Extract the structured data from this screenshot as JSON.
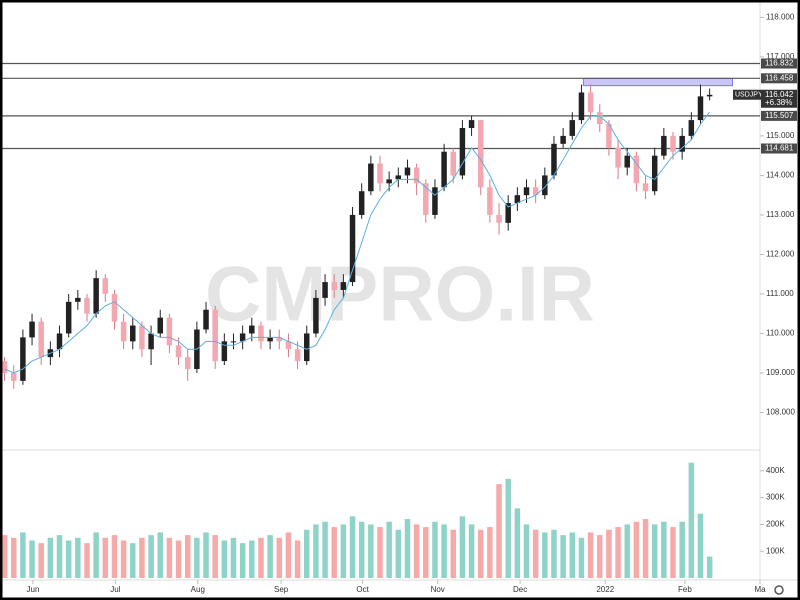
{
  "chart_data": [
    {
      "type": "candlestick",
      "symbol": "USDJPY",
      "watermark": "CMPRO.IR",
      "up_color": "#222222",
      "down_color": "#f3a7b0",
      "ma_color": "#5aaee0",
      "open": [
        109.3,
        109.0,
        108.8,
        109.9,
        110.3,
        109.4,
        109.6,
        110.0,
        110.8,
        110.9,
        110.5,
        111.4,
        111.0,
        110.3,
        109.8,
        110.2,
        109.6,
        110.0,
        110.4,
        109.7,
        109.4,
        109.1,
        110.1,
        110.6,
        109.3,
        109.8,
        109.8,
        110.0,
        110.2,
        109.8,
        109.9,
        109.8,
        109.6,
        109.3,
        110.0,
        110.9,
        111.3,
        111.1,
        111.3,
        113.0,
        113.6,
        114.3,
        113.8,
        113.9,
        114.0,
        114.2,
        113.8,
        113.0,
        113.7,
        114.6,
        114.0,
        115.2,
        115.4,
        113.7,
        113.0,
        112.8,
        113.3,
        113.5,
        113.7,
        113.5,
        114.0,
        114.8,
        115.0,
        115.4,
        116.1,
        115.6,
        115.3,
        114.7,
        114.2,
        114.5,
        113.8,
        113.6,
        114.5,
        115.0,
        114.6,
        115.0,
        115.4,
        116.0
      ],
      "high": [
        109.4,
        109.2,
        110.1,
        110.5,
        110.4,
        109.8,
        110.2,
        111.0,
        111.1,
        111.0,
        111.6,
        111.5,
        111.1,
        110.5,
        110.4,
        110.3,
        110.2,
        110.6,
        110.5,
        109.9,
        109.6,
        110.3,
        110.8,
        110.7,
        110.0,
        110.0,
        110.2,
        110.4,
        110.3,
        110.1,
        110.1,
        110.0,
        109.8,
        110.2,
        111.1,
        111.5,
        111.5,
        111.5,
        113.2,
        113.8,
        114.5,
        114.5,
        114.1,
        114.2,
        114.4,
        114.3,
        113.9,
        113.9,
        114.8,
        114.7,
        115.4,
        115.5,
        115.4,
        113.9,
        113.3,
        113.5,
        113.7,
        113.9,
        113.9,
        114.2,
        115.0,
        115.2,
        115.6,
        116.3,
        116.3,
        115.8,
        115.4,
        114.9,
        114.7,
        114.6,
        114.0,
        114.7,
        115.2,
        115.1,
        115.2,
        115.6,
        116.3,
        116.2
      ],
      "low": [
        108.8,
        108.6,
        108.7,
        109.7,
        109.2,
        109.2,
        109.4,
        109.9,
        110.6,
        110.3,
        110.4,
        110.8,
        110.1,
        109.6,
        109.6,
        109.4,
        109.2,
        109.9,
        109.5,
        109.2,
        108.8,
        109.0,
        110.0,
        109.1,
        109.2,
        109.6,
        109.6,
        109.8,
        109.6,
        109.6,
        109.6,
        109.4,
        109.1,
        109.2,
        109.9,
        110.7,
        110.9,
        110.9,
        111.2,
        112.9,
        113.5,
        113.6,
        113.6,
        113.7,
        113.8,
        113.5,
        112.8,
        112.9,
        113.6,
        113.8,
        113.9,
        115.0,
        113.5,
        112.8,
        112.5,
        112.6,
        113.1,
        113.3,
        113.3,
        113.4,
        113.9,
        114.7,
        114.9,
        115.3,
        115.4,
        115.1,
        114.5,
        113.9,
        114.0,
        113.6,
        113.4,
        113.5,
        114.4,
        114.4,
        114.4,
        114.9,
        115.3,
        115.9
      ],
      "close": [
        109.0,
        108.8,
        109.9,
        110.3,
        109.4,
        109.6,
        110.0,
        110.8,
        110.9,
        110.5,
        111.4,
        111.0,
        110.3,
        109.8,
        110.2,
        109.6,
        110.0,
        110.4,
        109.7,
        109.4,
        109.1,
        110.1,
        110.6,
        109.3,
        109.8,
        109.8,
        110.0,
        110.2,
        109.8,
        109.9,
        109.8,
        109.6,
        109.3,
        110.0,
        110.9,
        111.3,
        111.1,
        111.3,
        113.0,
        113.6,
        114.3,
        113.8,
        113.9,
        114.0,
        114.2,
        113.8,
        113.0,
        113.7,
        114.6,
        114.0,
        115.2,
        115.4,
        113.7,
        113.0,
        112.8,
        113.3,
        113.5,
        113.7,
        113.5,
        114.0,
        114.8,
        115.0,
        115.4,
        116.1,
        115.6,
        115.3,
        114.7,
        114.2,
        114.5,
        113.8,
        113.6,
        114.5,
        115.0,
        114.6,
        115.0,
        115.4,
        116.0,
        116.04
      ],
      "ma": [
        109.1,
        109.0,
        109.1,
        109.3,
        109.4,
        109.5,
        109.6,
        109.8,
        110.0,
        110.2,
        110.5,
        110.7,
        110.8,
        110.6,
        110.4,
        110.2,
        110.0,
        109.9,
        109.9,
        109.8,
        109.6,
        109.6,
        109.8,
        109.8,
        109.7,
        109.7,
        109.8,
        109.9,
        109.9,
        109.9,
        109.9,
        109.8,
        109.7,
        109.6,
        109.7,
        110.1,
        110.6,
        110.9,
        111.6,
        112.3,
        113.0,
        113.4,
        113.7,
        113.9,
        113.9,
        113.9,
        113.7,
        113.5,
        113.7,
        113.9,
        114.3,
        114.7,
        114.4,
        114.0,
        113.5,
        113.2,
        113.3,
        113.4,
        113.5,
        113.7,
        114.0,
        114.4,
        114.8,
        115.2,
        115.5,
        115.5,
        115.3,
        114.9,
        114.6,
        114.3,
        114.0,
        113.9,
        114.2,
        114.5,
        114.7,
        114.9,
        115.3,
        115.6
      ],
      "xlim": [
        -0.5,
        82.5
      ],
      "xticks": [
        {
          "value": 3.1,
          "label": "Jun"
        },
        {
          "value": 12.1,
          "label": "Jul"
        },
        {
          "value": 21.1,
          "label": "Aug"
        },
        {
          "value": 30.2,
          "label": "Sep"
        },
        {
          "value": 39.1,
          "label": "Oct"
        },
        {
          "value": 47.3,
          "label": "Nov"
        },
        {
          "value": 56.3,
          "label": "Dec"
        },
        {
          "value": 65.6,
          "label": "2022"
        },
        {
          "value": 74.3,
          "label": "Feb"
        },
        {
          "value": 82.5,
          "label": "Ma"
        }
      ],
      "ylim": [
        107.05,
        118.44
      ],
      "yticks": [
        {
          "value": 108,
          "label": "108.000"
        },
        {
          "value": 109,
          "label": "109.000"
        },
        {
          "value": 110,
          "label": "110.000"
        },
        {
          "value": 111,
          "label": "111.000"
        },
        {
          "value": 112,
          "label": "112.000"
        },
        {
          "value": 113,
          "label": "113.000"
        },
        {
          "value": 114,
          "label": "114.000"
        },
        {
          "value": 115,
          "label": "115.000"
        },
        {
          "value": 116,
          "label": "116.000"
        },
        {
          "value": 117,
          "label": "117.000"
        },
        {
          "value": 118,
          "label": "118.000"
        }
      ],
      "levels": [
        116.832,
        116.458,
        115.507,
        114.681
      ],
      "zone": {
        "x": [
          63.2,
          79.5
        ],
        "y": [
          116.27,
          116.458
        ],
        "color": "#c8c6f6"
      },
      "last_price": 116.042,
      "change_label": "+6.38%"
    },
    {
      "type": "bar",
      "up_color": "#8fd3c8",
      "down_color": "#f6a9a9",
      "values": [
        160000,
        150000,
        170000,
        140000,
        130000,
        150000,
        160000,
        140000,
        150000,
        130000,
        170000,
        150000,
        160000,
        140000,
        130000,
        150000,
        160000,
        170000,
        150000,
        140000,
        160000,
        150000,
        170000,
        160000,
        140000,
        150000,
        130000,
        140000,
        150000,
        160000,
        150000,
        170000,
        140000,
        180000,
        200000,
        210000,
        190000,
        200000,
        230000,
        210000,
        200000,
        190000,
        210000,
        180000,
        220000,
        200000,
        190000,
        210000,
        200000,
        180000,
        230000,
        200000,
        180000,
        190000,
        350000,
        370000,
        260000,
        200000,
        180000,
        170000,
        180000,
        160000,
        170000,
        150000,
        170000,
        160000,
        180000,
        190000,
        200000,
        210000,
        220000,
        200000,
        210000,
        190000,
        210000,
        430000,
        240000,
        80000
      ],
      "ylim": [
        0,
        470000
      ],
      "yticks": [
        {
          "value": 100000,
          "label": "100K"
        },
        {
          "value": 200000,
          "label": "200K"
        },
        {
          "value": 300000,
          "label": "300K"
        },
        {
          "value": 400000,
          "label": "400K"
        }
      ]
    }
  ]
}
